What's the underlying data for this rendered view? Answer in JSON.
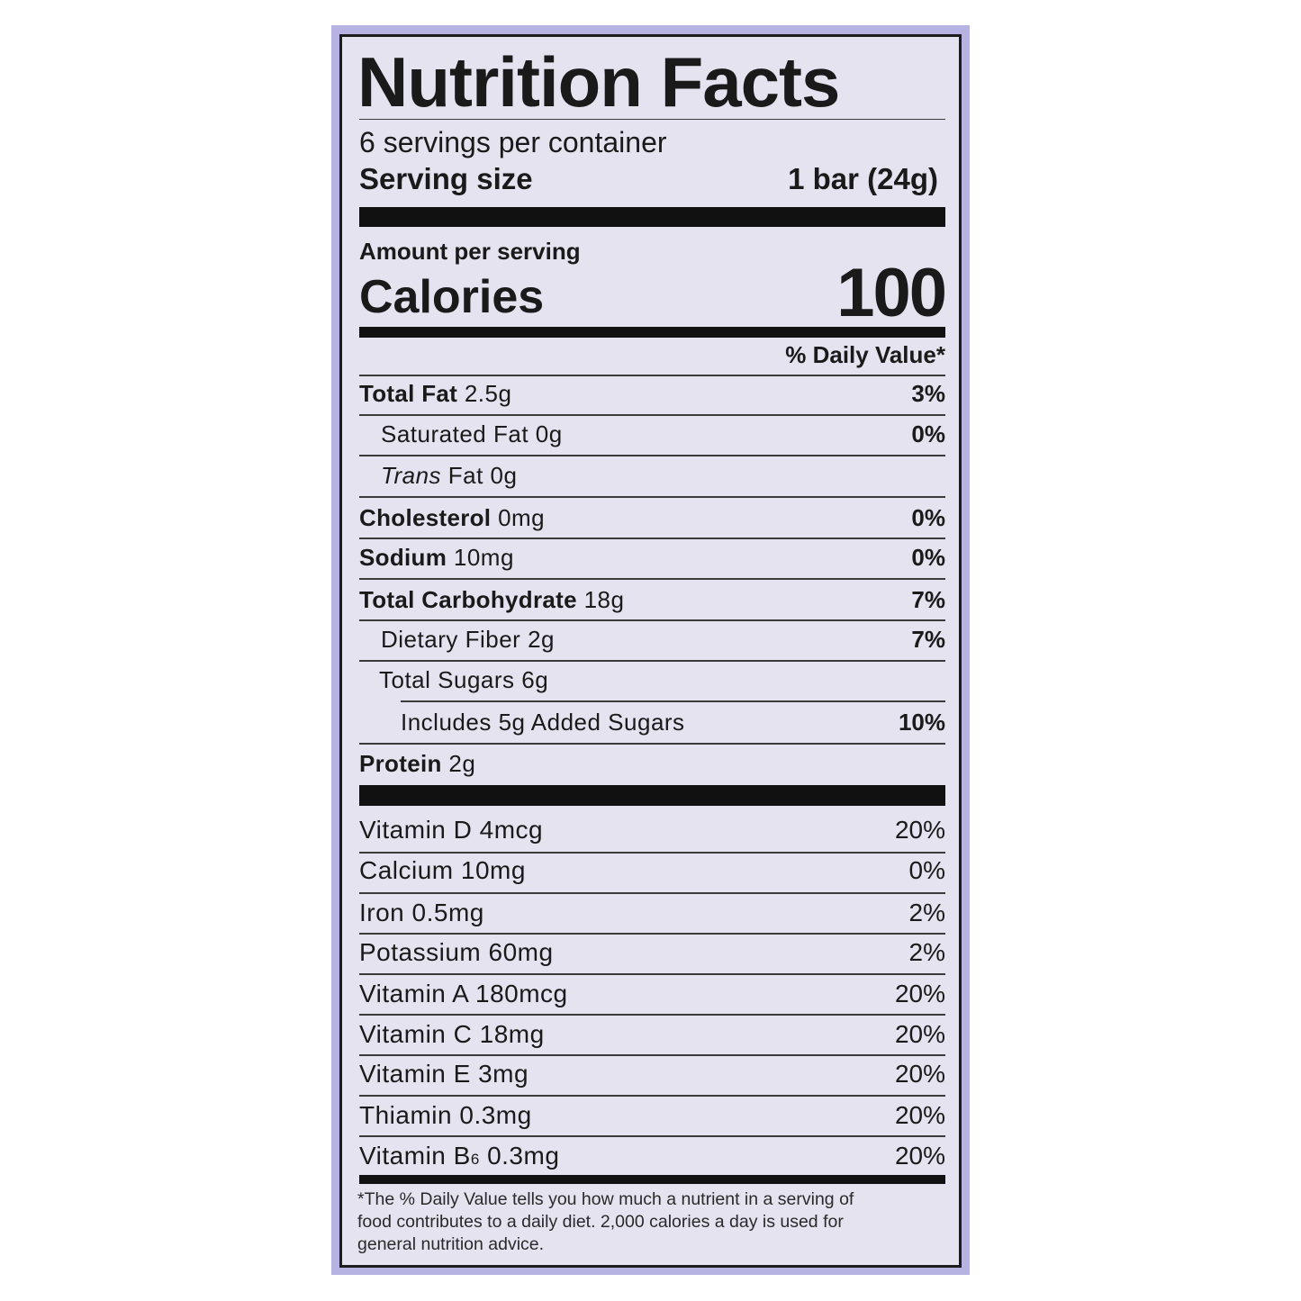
{
  "title": "Nutrition Facts",
  "servings_per_container": "6 servings per container",
  "serving_size": {
    "label": "Serving size",
    "value": "1 bar (24g)"
  },
  "amount_per_serving": "Amount per serving",
  "calories": {
    "label": "Calories",
    "value": "100"
  },
  "daily_value_header": "% Daily Value*",
  "nutrients": [
    {
      "name": "Total Fat",
      "amount": "2.5g",
      "dv": "3%"
    },
    {
      "name": "Saturated Fat",
      "amount": "0g",
      "dv": "0%"
    },
    {
      "name": "Trans",
      "name_rest": "Fat 0g",
      "dv": ""
    },
    {
      "name": "Cholesterol",
      "amount": "0mg",
      "dv": "0%"
    },
    {
      "name": "Sodium",
      "amount": "10mg",
      "dv": "0%"
    },
    {
      "name": "Total Carbohydrate",
      "amount": "18g",
      "dv": "7%"
    },
    {
      "name": "Dietary Fiber",
      "amount": "2g",
      "dv": "7%"
    },
    {
      "name": "Total Sugars",
      "amount": "6g",
      "dv": ""
    },
    {
      "name": "Includes 5g Added Sugars",
      "dv": "10%"
    },
    {
      "name": "Protein",
      "amount": "2g"
    }
  ],
  "vitamins": [
    {
      "name": "Vitamin D 4mcg",
      "dv": "20%"
    },
    {
      "name": "Calcium 10mg",
      "dv": "0%"
    },
    {
      "name": "Iron 0.5mg",
      "dv": "2%"
    },
    {
      "name": "Potassium 60mg",
      "dv": "2%"
    },
    {
      "name": "Vitamin A 180mcg",
      "dv": "20%"
    },
    {
      "name": "Vitamin C 18mg",
      "dv": "20%"
    },
    {
      "name": "Vitamin E 3mg",
      "dv": "20%"
    },
    {
      "name": "Thiamin 0.3mg",
      "dv": "20%"
    },
    {
      "name": "Vitamin B",
      "sub": "6",
      "amount": "0.3mg",
      "dv": "20%"
    }
  ],
  "footnote": "*The % Daily Value tells you how much a nutrient in a serving of food contributes to a daily diet. 2,000 calories a day is used for general nutrition advice.",
  "colors": {
    "border": "#b6b3e2",
    "panel": "#e4e3ef",
    "ink": "#111111"
  }
}
